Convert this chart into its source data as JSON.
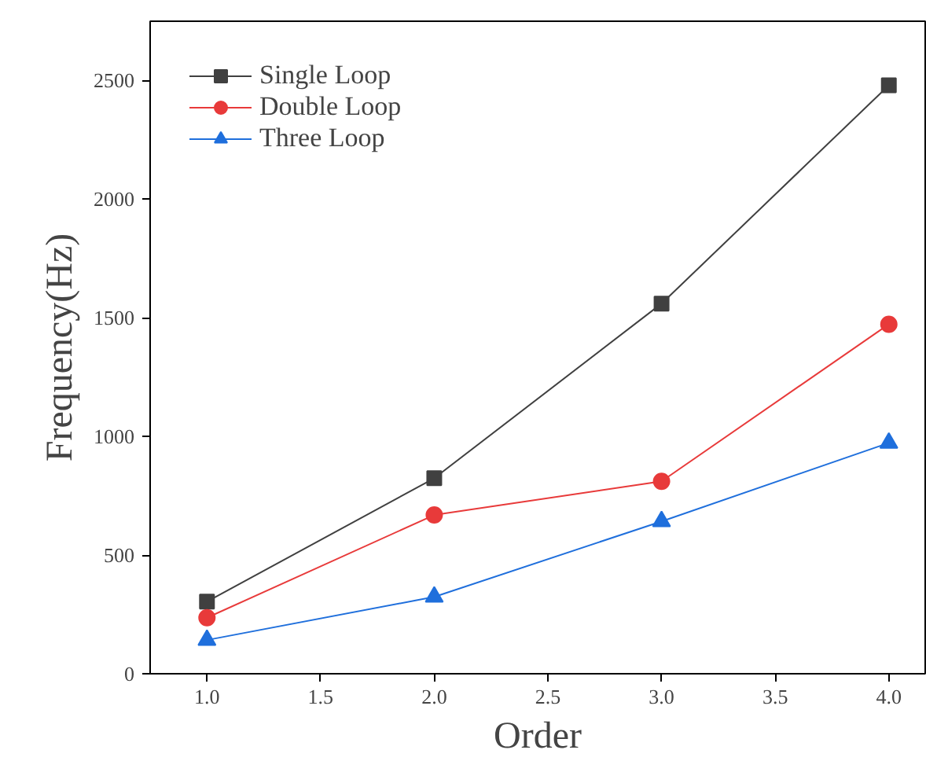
{
  "chart_data": {
    "type": "line",
    "xlabel": "Order",
    "ylabel": "Frequency(Hz)",
    "x": [
      1,
      2,
      3,
      4
    ],
    "series": [
      {
        "name": "Single Loop",
        "color": "#404040",
        "marker": "square",
        "values": [
          304,
          824,
          1560,
          2480
        ]
      },
      {
        "name": "Double Loop",
        "color": "#e83a3a",
        "marker": "circle",
        "values": [
          236,
          669,
          811,
          1473
        ]
      },
      {
        "name": "Three Loop",
        "color": "#1f6fdc",
        "marker": "triangle",
        "values": [
          142,
          324,
          642,
          973
        ]
      }
    ],
    "xlim": [
      0.75,
      4.16
    ],
    "xticks": [
      {
        "value": 1,
        "label": "1.0"
      },
      {
        "value": 1.5,
        "label": "1.5"
      },
      {
        "value": 2,
        "label": "2.0"
      },
      {
        "value": 2.5,
        "label": "2.5"
      },
      {
        "value": 3,
        "label": "3.0"
      },
      {
        "value": 3.5,
        "label": "3.5"
      },
      {
        "value": 4,
        "label": "4.0"
      }
    ],
    "ylim": [
      0,
      2750
    ],
    "yticks": [
      0,
      500,
      1000,
      1500,
      2000,
      2500
    ],
    "grid": false,
    "legend": "top left",
    "line_style": "solid"
  }
}
